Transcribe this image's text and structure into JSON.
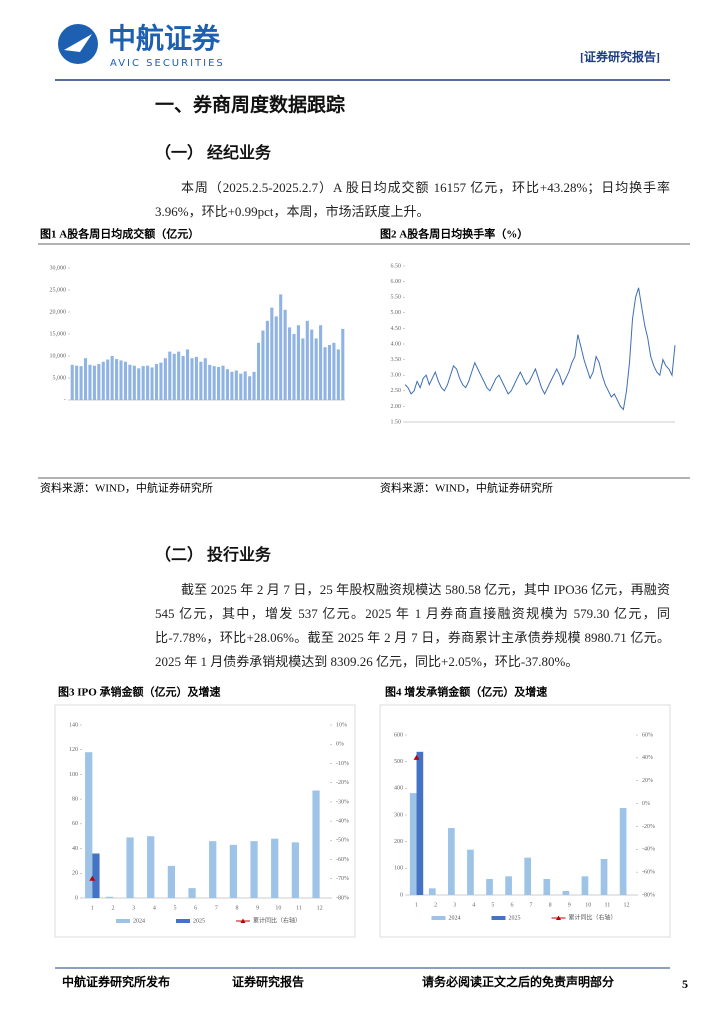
{
  "header": {
    "logo_cn": "中航证券",
    "logo_en": "AVIC SECURITIES",
    "tag": "[证券研究报告]"
  },
  "section_title": "一、券商周度数据跟踪",
  "brokerage": {
    "heading": "（一） 经纪业务",
    "paragraph": "本周（2025.2.5-2025.2.7）A 股日均成交额 16157 亿元，环比+43.28%；日均换手率 3.96%，环比+0.99pct，本周，市场活跃度上升。"
  },
  "banking": {
    "heading": "（二） 投行业务",
    "paragraph": "截至 2025 年 2 月 7 日，25 年股权融资规模达 580.58 亿元，其中 IPO36 亿元，再融资 545 亿元，其中，增发 537 亿元。2025 年 1 月券商直接融资规模为 579.30 亿元，同比-7.78%，环比+28.06%。截至 2025 年 2 月 7 日，券商累计主承债券规模 8980.71 亿元。2025 年 1 月债券承销规模达到 8309.26 亿元，同比+2.05%，环比-37.80%。"
  },
  "charts": [
    {
      "type": "bar",
      "title": "图1 A股各周日均成交额（亿元）",
      "source": "资料来源：WIND，中航证券研究所",
      "color": "#8fb4e3",
      "values": [
        8000,
        7800,
        7700,
        9500,
        8000,
        7800,
        8200,
        8700,
        9200,
        10000,
        9300,
        9000,
        8700,
        8000,
        7800,
        7200,
        7700,
        7800,
        7400,
        8200,
        8500,
        9500,
        11000,
        10500,
        11000,
        10000,
        11500,
        9500,
        9800,
        8700,
        9500,
        8000,
        7700,
        7500,
        7800,
        7000,
        6400,
        6700,
        6000,
        6500,
        5400,
        6400,
        13000,
        15800,
        18000,
        21000,
        19000,
        24000,
        20500,
        16500,
        15000,
        17000,
        14000,
        18000,
        16000,
        14000,
        17000,
        12000,
        12500,
        13000,
        11500,
        16157
      ],
      "ylim": [
        0,
        30000
      ],
      "yticks": [
        {
          "value": 0,
          "label": "-"
        },
        {
          "value": 5000,
          "label": "5,000"
        },
        {
          "value": 10000,
          "label": "10,000"
        },
        {
          "value": 15000,
          "label": "15,000"
        },
        {
          "value": 20000,
          "label": "20,000"
        },
        {
          "value": 25000,
          "label": "25,000"
        },
        {
          "value": 30000,
          "label": "30,000"
        }
      ]
    },
    {
      "type": "line",
      "title": "图2 A股各周日均换手率（%）",
      "source": "资料来源：WIND，中航证券研究所",
      "color": "#3d6eb5",
      "values": [
        2.7,
        2.6,
        2.4,
        2.5,
        2.8,
        2.6,
        2.9,
        3.0,
        2.7,
        2.9,
        3.1,
        2.8,
        2.6,
        2.5,
        2.7,
        3.0,
        3.3,
        3.2,
        2.9,
        2.7,
        2.6,
        2.8,
        3.1,
        3.4,
        3.2,
        3.0,
        2.8,
        2.6,
        2.5,
        2.7,
        2.9,
        3.0,
        2.8,
        2.6,
        2.4,
        2.5,
        2.7,
        2.9,
        3.1,
        2.9,
        2.7,
        2.8,
        3.0,
        3.2,
        2.9,
        2.6,
        2.4,
        2.6,
        2.8,
        3.0,
        3.2,
        3.0,
        2.7,
        2.9,
        3.1,
        3.4,
        3.6,
        4.3,
        3.9,
        3.5,
        3.2,
        2.9,
        3.1,
        3.6,
        3.4,
        3.0,
        2.7,
        2.5,
        2.3,
        2.4,
        2.2,
        2.0,
        1.9,
        2.5,
        3.4,
        4.8,
        5.5,
        5.8,
        5.2,
        4.6,
        4.2,
        3.6,
        3.3,
        3.1,
        3.0,
        3.5,
        3.3,
        3.2,
        3.0,
        3.96
      ],
      "ylim": [
        1.5,
        6.5
      ],
      "yticks": [
        {
          "value": 1.5,
          "label": "1.50"
        },
        {
          "value": 2,
          "label": "2.00"
        },
        {
          "value": 2.5,
          "label": "2.50"
        },
        {
          "value": 3,
          "label": "3.00"
        },
        {
          "value": 3.5,
          "label": "3.50"
        },
        {
          "value": 4,
          "label": "4.00"
        },
        {
          "value": 4.5,
          "label": "4.50"
        },
        {
          "value": 5,
          "label": "5.00"
        },
        {
          "value": 5.5,
          "label": "5.50"
        },
        {
          "value": 6,
          "label": "6.00"
        },
        {
          "value": 6.5,
          "label": "6.50"
        }
      ]
    },
    {
      "type": "bar",
      "title": "图3 IPO 承销金额（亿元）及增速",
      "categories": [
        "1",
        "2",
        "3",
        "4",
        "5",
        "6",
        "7",
        "8",
        "9",
        "10",
        "11",
        "12"
      ],
      "series": [
        {
          "name": "2024",
          "color": "#9dc3e6",
          "values": [
            118,
            1,
            49,
            50,
            26,
            8,
            46,
            43,
            46,
            48,
            45,
            87
          ]
        },
        {
          "name": "2025",
          "color": "#4472c4",
          "values": [
            36,
            null,
            null,
            null,
            null,
            null,
            null,
            null,
            null,
            null,
            null,
            null
          ]
        },
        {
          "name": "累计同比（右轴）",
          "color": "#c00000",
          "axis": "y2",
          "values": [
            -70,
            null,
            null,
            null,
            null,
            null,
            null,
            null,
            null,
            null,
            null,
            null
          ]
        }
      ],
      "ylim": [
        0,
        140
      ],
      "yticks": [
        0,
        20,
        40,
        60,
        80,
        100,
        120,
        140
      ],
      "y2lim": [
        -80,
        10
      ],
      "y2ticks": [
        {
          "value": -80,
          "label": "-80%"
        },
        {
          "value": -70,
          "label": "-70%"
        },
        {
          "value": -60,
          "label": "-60%"
        },
        {
          "value": -50,
          "label": "-50%"
        },
        {
          "value": -40,
          "label": "-40%"
        },
        {
          "value": -30,
          "label": "-30%"
        },
        {
          "value": -20,
          "label": "-20%"
        },
        {
          "value": -10,
          "label": "-10%"
        },
        {
          "value": 0,
          "label": "0%"
        },
        {
          "value": 10,
          "label": "10%"
        }
      ]
    },
    {
      "type": "bar",
      "title": "图4 增发承销金额（亿元）及增速",
      "categories": [
        "1",
        "2",
        "3",
        "4",
        "5",
        "6",
        "7",
        "8",
        "9",
        "10",
        "11",
        "12"
      ],
      "series": [
        {
          "name": "2024",
          "color": "#9dc3e6",
          "values": [
            382,
            25,
            251,
            170,
            60,
            70,
            140,
            60,
            15,
            70,
            135,
            326
          ]
        },
        {
          "name": "2025",
          "color": "#4472c4",
          "values": [
            537,
            null,
            null,
            null,
            null,
            null,
            null,
            null,
            null,
            null,
            null,
            null
          ]
        },
        {
          "name": "累计同比（右轴）",
          "color": "#c00000",
          "axis": "y2",
          "values": [
            40,
            null,
            null,
            null,
            null,
            null,
            null,
            null,
            null,
            null,
            null,
            null
          ]
        }
      ],
      "ylim": [
        0,
        600
      ],
      "yticks": [
        0,
        100,
        200,
        300,
        400,
        500,
        600
      ],
      "y2lim": [
        -80,
        60
      ],
      "y2ticks": [
        {
          "value": -80,
          "label": "-80%"
        },
        {
          "value": -60,
          "label": "-60%"
        },
        {
          "value": -40,
          "label": "-40%"
        },
        {
          "value": -20,
          "label": "-20%"
        },
        {
          "value": 0,
          "label": "0%"
        },
        {
          "value": 20,
          "label": "20%"
        },
        {
          "value": 40,
          "label": "40%"
        },
        {
          "value": 60,
          "label": "60%"
        }
      ]
    }
  ],
  "footer": {
    "left": "中航证券研究所发布",
    "middle": "证券研究报告",
    "right": "请务必阅读正文之后的免责声明部分",
    "page": "5"
  }
}
